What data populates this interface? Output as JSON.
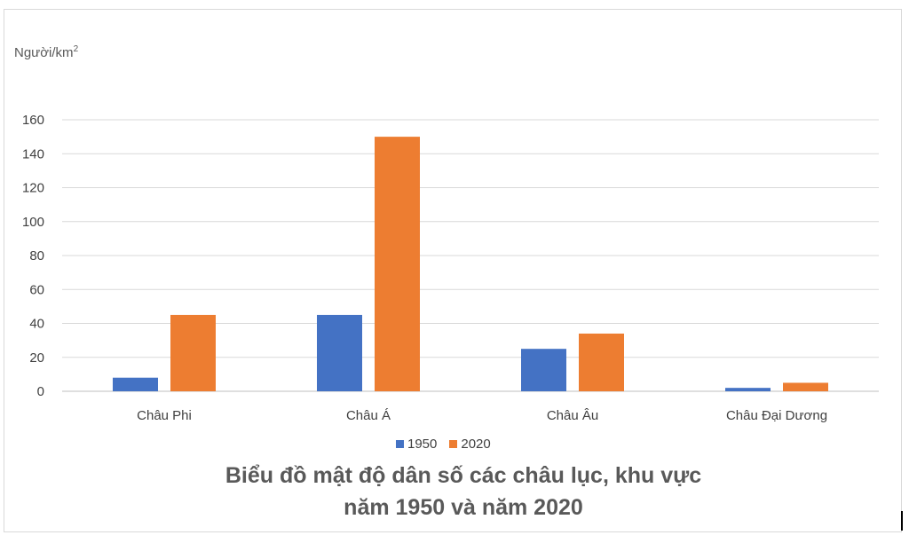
{
  "chart_data": {
    "type": "bar",
    "title_line1": "Biểu đồ mật độ dân số các châu lục, khu vực",
    "title_line2": "năm 1950 và năm 2020",
    "ylabel": "Người/km",
    "ylabel_superscript": "2",
    "ylim": [
      0,
      160
    ],
    "yticks": [
      0,
      20,
      40,
      60,
      80,
      100,
      120,
      140,
      160
    ],
    "grid": true,
    "legend_position": "bottom",
    "categories": [
      "Châu Phi",
      "Châu Á",
      "Châu Âu",
      "Châu Đại Dương"
    ],
    "series": [
      {
        "name": "1950",
        "color": "#4472c4",
        "values": [
          8,
          45,
          25,
          2
        ]
      },
      {
        "name": "2020",
        "color": "#ed7d31",
        "values": [
          45,
          150,
          34,
          5
        ]
      }
    ]
  }
}
